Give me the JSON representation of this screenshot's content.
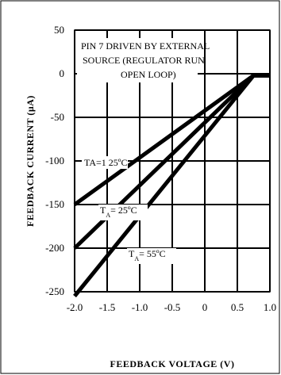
{
  "chart_data": {
    "type": "line",
    "xlabel": "FEEDBACK VOLTAGE (V)",
    "ylabel": "FEEDBACK CURRENT  (µA)",
    "xlim": [
      -2.0,
      1.0
    ],
    "ylim": [
      -250,
      50
    ],
    "x_ticks": [
      "-2.0",
      "-1.5",
      "-1.0",
      "-0.5",
      "0",
      "0.5",
      "1.0"
    ],
    "x_tick_values": [
      -2.0,
      -1.5,
      -1.0,
      -0.5,
      0,
      0.5,
      1.0
    ],
    "y_ticks": [
      "50",
      "0",
      "-50",
      "-100",
      "-150",
      "-200",
      "-250"
    ],
    "y_tick_values": [
      50,
      0,
      -50,
      -100,
      -150,
      -200,
      -250
    ],
    "grid": true,
    "annotation": [
      "PIN 7 DRIVEN BY EXTERNAL",
      "SOURCE (REGULATOR RUN",
      "OPEN LOOP)"
    ],
    "series": [
      {
        "label_main": "TA=1 25ºC",
        "x": [
          -2.0,
          0.75,
          1.0
        ],
        "y": [
          -150,
          -2,
          -2
        ]
      },
      {
        "label_main": "T",
        "label_sub": "A",
        "label_rest": "= 25ºC",
        "x": [
          -2.0,
          0.75,
          1.0
        ],
        "y": [
          -200,
          -2,
          -2
        ]
      },
      {
        "label_main": "T",
        "label_sub": "A",
        "label_rest": "= 55ºC",
        "x": [
          -2.0,
          0.75,
          1.0
        ],
        "y": [
          -255,
          -2,
          -2
        ]
      }
    ]
  }
}
